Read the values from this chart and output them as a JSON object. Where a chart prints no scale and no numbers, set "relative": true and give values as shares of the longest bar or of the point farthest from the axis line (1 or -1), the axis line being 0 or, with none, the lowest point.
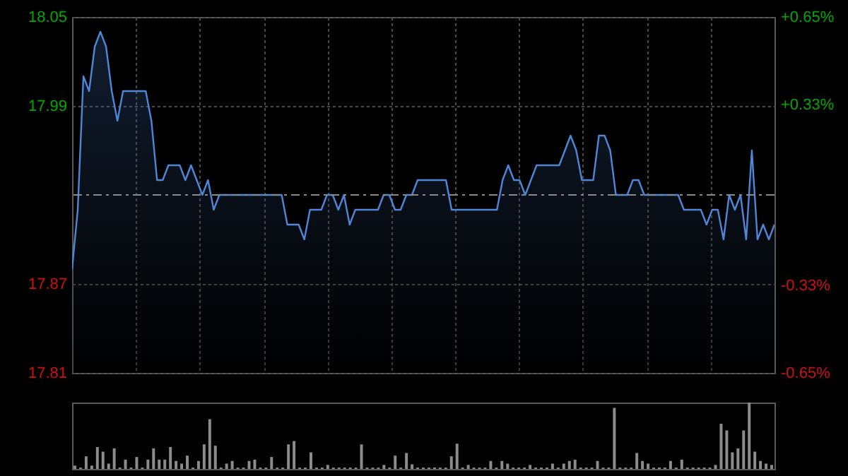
{
  "chart_data": [
    {
      "type": "area",
      "categories": [
        null,
        null,
        null,
        null,
        null,
        null,
        null,
        null,
        null,
        null,
        null,
        null,
        null,
        null,
        null,
        null,
        null,
        null,
        null,
        null,
        null,
        null,
        null,
        null,
        null,
        null,
        null,
        null,
        null,
        null,
        null,
        null,
        null,
        null,
        null,
        null,
        null,
        null,
        null,
        null,
        null,
        null,
        null,
        null,
        null,
        null,
        null,
        null,
        null,
        null,
        null,
        null,
        null,
        null,
        null,
        null,
        null,
        null,
        null,
        null,
        null,
        null,
        null,
        null,
        null,
        null,
        null,
        null,
        null,
        null,
        null,
        null,
        null,
        null,
        null,
        null,
        null,
        null,
        null,
        null,
        null,
        null,
        null,
        null,
        null,
        null,
        null,
        null,
        null,
        null,
        null,
        null,
        null,
        null,
        null,
        null,
        null,
        null,
        null,
        null,
        null,
        null,
        null,
        null,
        null,
        null,
        null,
        null,
        null,
        null,
        null,
        null,
        null,
        null,
        null,
        null,
        null,
        null,
        null,
        null,
        null,
        null,
        null,
        null,
        null
      ],
      "series": [
        {
          "color": "#4f86d8",
          "values": [
            17.88,
            17.92,
            18.01,
            18.0,
            18.03,
            18.04,
            18.03,
            18.0,
            17.98,
            18.0,
            18.0,
            18.0,
            18.0,
            18.0,
            17.98,
            17.94,
            17.94,
            17.95,
            17.95,
            17.95,
            17.94,
            17.95,
            17.94,
            17.93,
            17.94,
            17.92,
            17.93,
            17.93,
            17.93,
            17.93,
            17.93,
            17.93,
            17.93,
            17.93,
            17.93,
            17.93,
            17.93,
            17.93,
            17.91,
            17.91,
            17.91,
            17.9,
            17.92,
            17.92,
            17.92,
            17.93,
            17.93,
            17.92,
            17.93,
            17.91,
            17.92,
            17.92,
            17.92,
            17.92,
            17.92,
            17.93,
            17.93,
            17.92,
            17.92,
            17.93,
            17.93,
            17.94,
            17.94,
            17.94,
            17.94,
            17.94,
            17.94,
            17.92,
            17.92,
            17.92,
            17.92,
            17.92,
            17.92,
            17.92,
            17.92,
            17.92,
            17.94,
            17.95,
            17.94,
            17.94,
            17.93,
            17.94,
            17.95,
            17.95,
            17.95,
            17.95,
            17.95,
            17.96,
            17.97,
            17.96,
            17.94,
            17.94,
            17.94,
            17.97,
            17.97,
            17.96,
            17.93,
            17.93,
            17.93,
            17.94,
            17.94,
            17.93,
            17.93,
            17.93,
            17.93,
            17.93,
            17.93,
            17.93,
            17.92,
            17.92,
            17.92,
            17.92,
            17.91,
            17.92,
            17.92,
            17.9,
            17.93,
            17.92,
            17.93,
            17.9,
            17.96,
            17.9,
            17.91,
            17.9,
            17.91
          ]
        }
      ],
      "ylim": [
        17.81,
        18.05
      ],
      "yticks": [
        17.81,
        17.87,
        17.99,
        18.05
      ],
      "y2lim": [
        -0.65,
        0.65
      ],
      "y2ticks": [
        {
          "value": -0.65,
          "label": "-0.65%"
        },
        {
          "value": -0.33,
          "label": "-0.33%"
        },
        {
          "value": 0.33,
          "label": "+0.33%"
        },
        {
          "value": 0.65,
          "label": "+0.65%"
        }
      ],
      "ref_lines": [
        {
          "axis": "y",
          "value": 17.93,
          "line_style": "dashed"
        }
      ],
      "grid": true,
      "tick_labels": "y"
    },
    {
      "type": "bar",
      "relative": true,
      "categories": [
        null,
        null,
        null,
        null,
        null,
        null,
        null,
        null,
        null,
        null,
        null,
        null,
        null,
        null,
        null,
        null,
        null,
        null,
        null,
        null,
        null,
        null,
        null,
        null,
        null,
        null,
        null,
        null,
        null,
        null,
        null,
        null,
        null,
        null,
        null,
        null,
        null,
        null,
        null,
        null,
        null,
        null,
        null,
        null,
        null,
        null,
        null,
        null,
        null,
        null,
        null,
        null,
        null,
        null,
        null,
        null,
        null,
        null,
        null,
        null,
        null,
        null,
        null,
        null,
        null,
        null,
        null,
        null,
        null,
        null,
        null,
        null,
        null,
        null,
        null,
        null,
        null,
        null,
        null,
        null,
        null,
        null,
        null,
        null,
        null,
        null,
        null,
        null,
        null,
        null,
        null,
        null,
        null,
        null,
        null,
        null,
        null,
        null,
        null,
        null,
        null,
        null,
        null,
        null,
        null,
        null,
        null,
        null,
        null,
        null,
        null,
        null,
        null,
        null,
        null,
        null,
        null,
        null,
        null,
        null,
        null,
        null,
        null,
        null,
        null
      ],
      "series": [
        {
          "color": "#8c8c8c",
          "values": [
            0.05,
            0.02,
            0.19,
            0.05,
            0.33,
            0.26,
            0.08,
            0.31,
            0.02,
            0.14,
            0.02,
            0.18,
            0.02,
            0.14,
            0.31,
            0.14,
            0.14,
            0.33,
            0.12,
            0.08,
            0.2,
            0.02,
            0.12,
            0.37,
            0.75,
            0.35,
            0.02,
            0.08,
            0.12,
            0.02,
            0.02,
            0.12,
            0.14,
            0.02,
            0.02,
            0.18,
            0.02,
            0.02,
            0.37,
            0.42,
            0.02,
            0.02,
            0.25,
            0.02,
            0.02,
            0.06,
            0.02,
            0.02,
            0.02,
            0.02,
            0.02,
            0.37,
            0.02,
            0.02,
            0.02,
            0.06,
            0.02,
            0.2,
            0.02,
            0.24,
            0.07,
            0.02,
            0.02,
            0.02,
            0.02,
            0.02,
            0.02,
            0.19,
            0.38,
            0.02,
            0.06,
            0.02,
            0.02,
            0.02,
            0.12,
            0.02,
            0.12,
            0.08,
            0.02,
            0.02,
            0.02,
            0.06,
            0.02,
            0.02,
            0.02,
            0.08,
            0.02,
            0.08,
            0.12,
            0.14,
            0.02,
            0.02,
            0.02,
            0.12,
            0.02,
            0.02,
            0.92,
            0.02,
            0.02,
            0.02,
            0.24,
            0.12,
            0.08,
            0.02,
            0.02,
            0.02,
            0.12,
            0.02,
            0.14,
            0.02,
            0.02,
            0.02,
            0.02,
            0.02,
            0.06,
            0.68,
            0.58,
            0.25,
            0.31,
            0.58,
            1.0,
            0.26,
            0.12,
            0.08,
            0.06
          ]
        }
      ]
    }
  ]
}
